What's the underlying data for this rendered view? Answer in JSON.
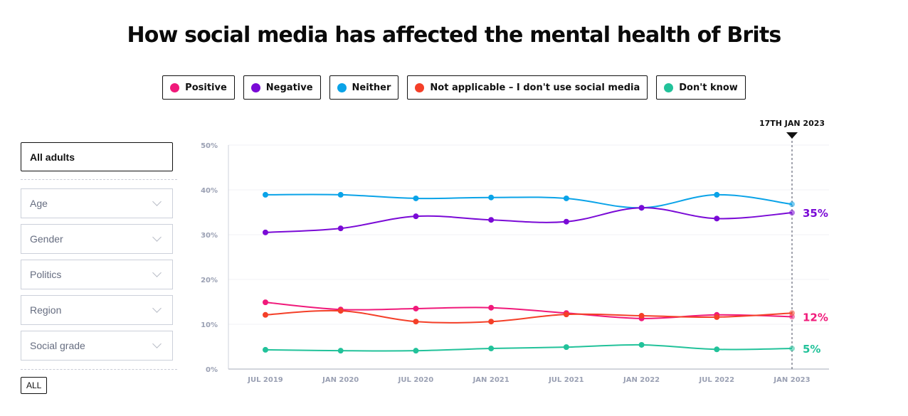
{
  "title": "How social media has affected the mental health of Brits",
  "legend": [
    {
      "label": "Positive",
      "color": "#f0197a"
    },
    {
      "label": "Negative",
      "color": "#7a0ad6"
    },
    {
      "label": "Neither",
      "color": "#0aa3e8"
    },
    {
      "label": "Not applicable – I don't use social media",
      "color": "#f43f28"
    },
    {
      "label": "Don't know",
      "color": "#22c29a"
    }
  ],
  "filters": {
    "selected": "All adults",
    "dropdowns": [
      "Age",
      "Gender",
      "Politics",
      "Region",
      "Social grade"
    ],
    "all_button": "ALL"
  },
  "chart_data": {
    "type": "line",
    "title": "How social media has affected the mental health of Brits",
    "xlabel": "",
    "ylabel": "",
    "x": [
      "JUL 2019",
      "JAN 2020",
      "JUL 2020",
      "JAN 2021",
      "JUL 2021",
      "JAN 2022",
      "JUL 2022",
      "JAN 2023"
    ],
    "yticks": [
      "0%",
      "10%",
      "20%",
      "30%",
      "40%",
      "50%"
    ],
    "ylim": [
      0,
      50
    ],
    "grid": true,
    "legend_position": "top-center",
    "series": [
      {
        "name": "Neither",
        "color": "#0aa3e8",
        "values": [
          38.9,
          38.9,
          38.1,
          38.3,
          38.1,
          36.0,
          38.9,
          36.8
        ],
        "end_label": null
      },
      {
        "name": "Negative",
        "color": "#7a0ad6",
        "values": [
          30.5,
          31.4,
          34.1,
          33.3,
          32.9,
          36.0,
          33.6,
          34.9
        ],
        "end_label": "35%"
      },
      {
        "name": "Positive",
        "color": "#f0197a",
        "values": [
          14.9,
          13.3,
          13.5,
          13.7,
          12.5,
          11.3,
          12.1,
          11.7
        ],
        "end_label": "12%"
      },
      {
        "name": "Not applicable – I don't use social media",
        "color": "#f43f28",
        "values": [
          12.1,
          13.0,
          10.6,
          10.6,
          12.2,
          11.9,
          11.6,
          12.5
        ],
        "end_label": null
      },
      {
        "name": "Don't know",
        "color": "#22c29a",
        "values": [
          4.3,
          4.1,
          4.1,
          4.6,
          4.9,
          5.4,
          4.4,
          4.6
        ],
        "end_label": "5%"
      }
    ],
    "annotation": {
      "label": "17TH JAN 2023",
      "x": "JAN 2023"
    }
  }
}
